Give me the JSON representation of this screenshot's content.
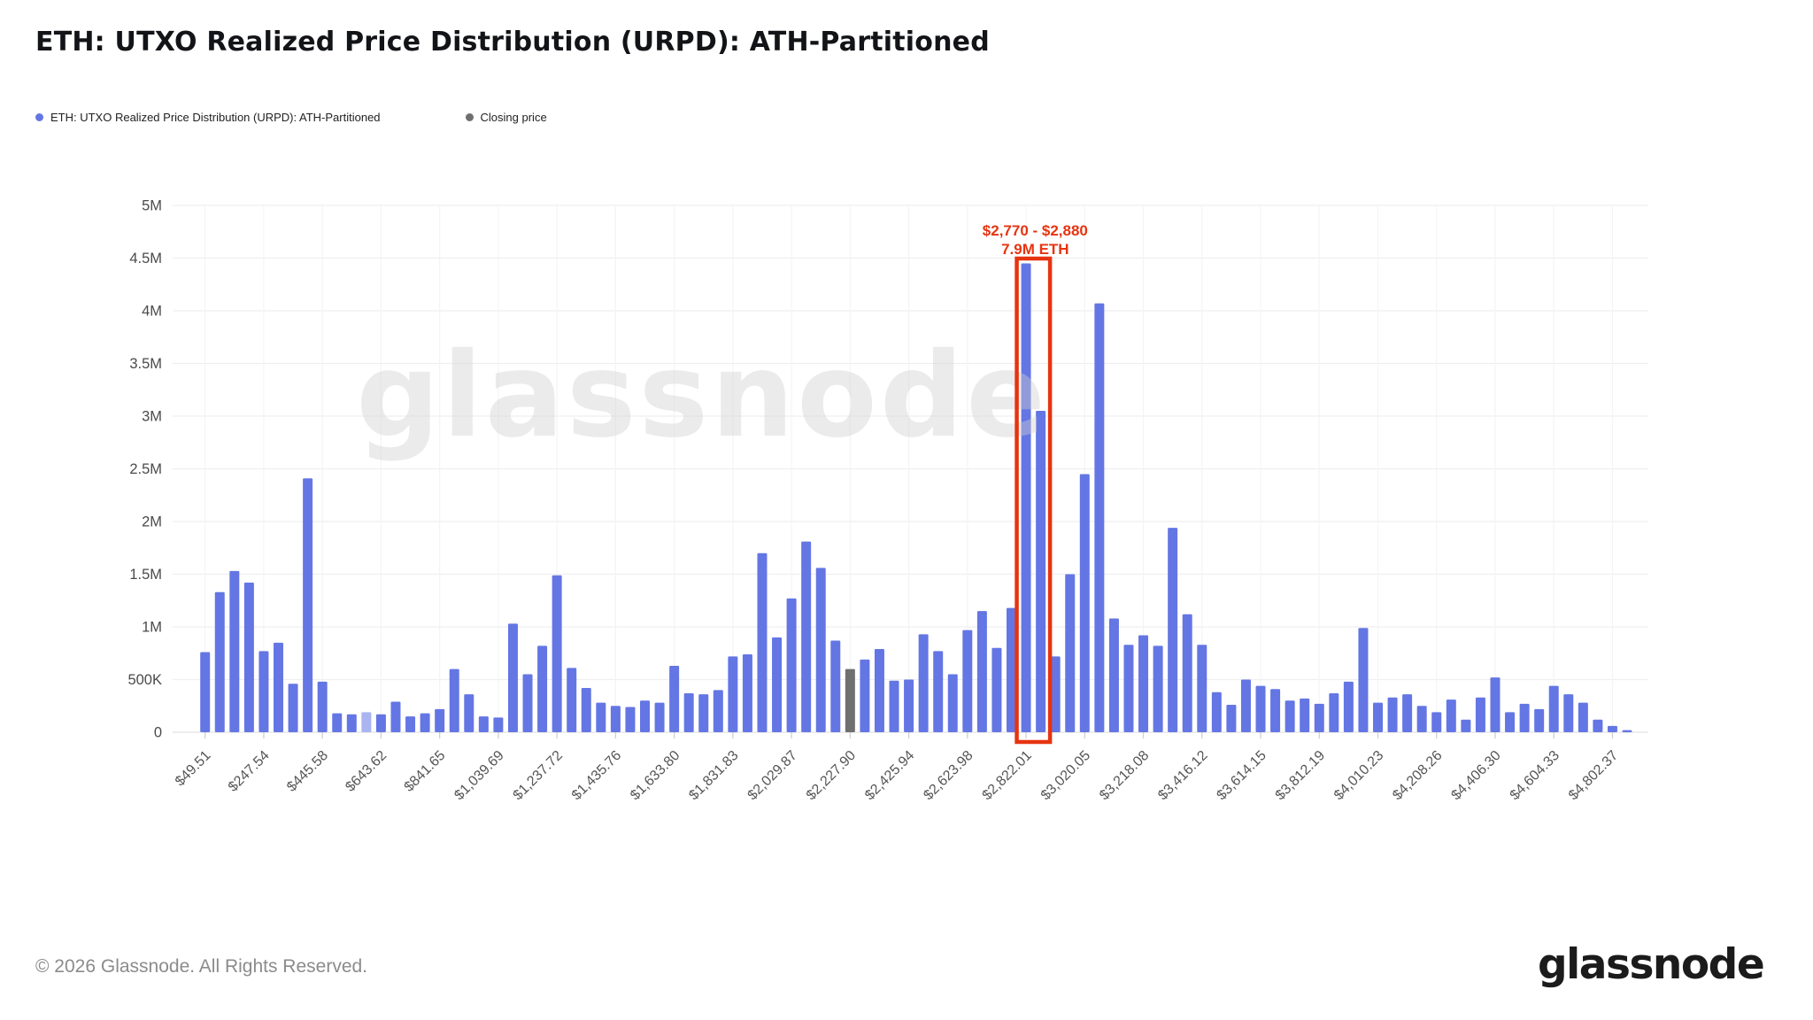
{
  "page": {
    "title": "ETH: UTXO Realized Price Distribution (URPD): ATH-Partitioned",
    "footer_copyright": "© 2026 Glassnode. All Rights Reserved.",
    "brand_logo": "glassnode",
    "watermark": "glassnode"
  },
  "legend": {
    "items": [
      {
        "label": "ETH: UTXO Realized Price Distribution (URPD): ATH-Partitioned",
        "color": "#6476e4"
      },
      {
        "label": "Closing price",
        "color": "#6f6f6f"
      }
    ]
  },
  "annotation": {
    "line1": "$2,770 - $2,880",
    "line2": "7.9M ETH",
    "color": "#e63410"
  },
  "chart_data": {
    "type": "bar",
    "title": "ETH: UTXO Realized Price Distribution (URPD): ATH-Partitioned",
    "xlabel": "",
    "ylabel": "",
    "unit": "M ETH",
    "ylim_m_eth": [
      0,
      5
    ],
    "grid": true,
    "legend_position": "top-left",
    "y_tick_labels": [
      "0",
      "500K",
      "1M",
      "1.5M",
      "2M",
      "2.5M",
      "3M",
      "3.5M",
      "4M",
      "4.5M",
      "5M"
    ],
    "x_tick_labels": [
      "$49.51",
      "$247.54",
      "$445.58",
      "$643.62",
      "$841.65",
      "$1,039.69",
      "$1,237.72",
      "$1,435.76",
      "$1,633.80",
      "$1,831.83",
      "$2,029.87",
      "$2,227.90",
      "$2,425.94",
      "$2,623.98",
      "$2,822.01",
      "$3,020.05",
      "$3,218.08",
      "$3,416.12",
      "$3,614.15",
      "$3,812.19",
      "$4,010.23",
      "$4,208.26",
      "$4,406.30",
      "$4,604.33",
      "$4,802.37"
    ],
    "x_label_every_n_bars": 4,
    "bucket_width_usd": 49.51,
    "values_m_eth": [
      0.76,
      1.33,
      1.53,
      1.42,
      0.77,
      0.85,
      0.46,
      2.41,
      0.48,
      0.18,
      0.17,
      0.19,
      0.17,
      0.29,
      0.15,
      0.18,
      0.22,
      0.6,
      0.36,
      0.15,
      0.14,
      1.03,
      0.55,
      0.82,
      1.49,
      0.61,
      0.42,
      0.28,
      0.25,
      0.24,
      0.3,
      0.28,
      0.63,
      0.37,
      0.36,
      0.4,
      0.72,
      0.74,
      1.7,
      0.9,
      1.27,
      1.81,
      1.56,
      0.87,
      0.6,
      0.69,
      0.79,
      0.49,
      0.5,
      0.93,
      0.77,
      0.55,
      0.97,
      1.15,
      0.8,
      1.18,
      4.45,
      3.05,
      0.72,
      1.5,
      2.45,
      4.07,
      1.08,
      0.83,
      0.92,
      0.82,
      1.94,
      1.12,
      0.83,
      0.38,
      0.26,
      0.5,
      0.44,
      0.41,
      0.3,
      0.32,
      0.27,
      0.37,
      0.48,
      0.99,
      0.28,
      0.33,
      0.36,
      0.25,
      0.19,
      0.31,
      0.12,
      0.33,
      0.52,
      0.19,
      0.27,
      0.22,
      0.44,
      0.36,
      0.28,
      0.12,
      0.06,
      0.02
    ],
    "series_color": "#6476e4",
    "light_bar": {
      "index": 11,
      "color": "#a9b4f0"
    },
    "closing_price_bar": {
      "index": 44,
      "color": "#6f6f6f",
      "at_x_label": "$2,227.90"
    },
    "highlight_box": {
      "bar_indices": [
        56,
        57
      ],
      "color": "#e63410",
      "label_line1": "$2,770 - $2,880",
      "label_line2": "7.9M ETH"
    },
    "colors": {
      "grid": "#efefef",
      "axis_line": "#e2e2e2",
      "tick": "#cfcfcf",
      "axis_text": "#4a4a4a",
      "watermark": "#d0d0d0"
    }
  }
}
